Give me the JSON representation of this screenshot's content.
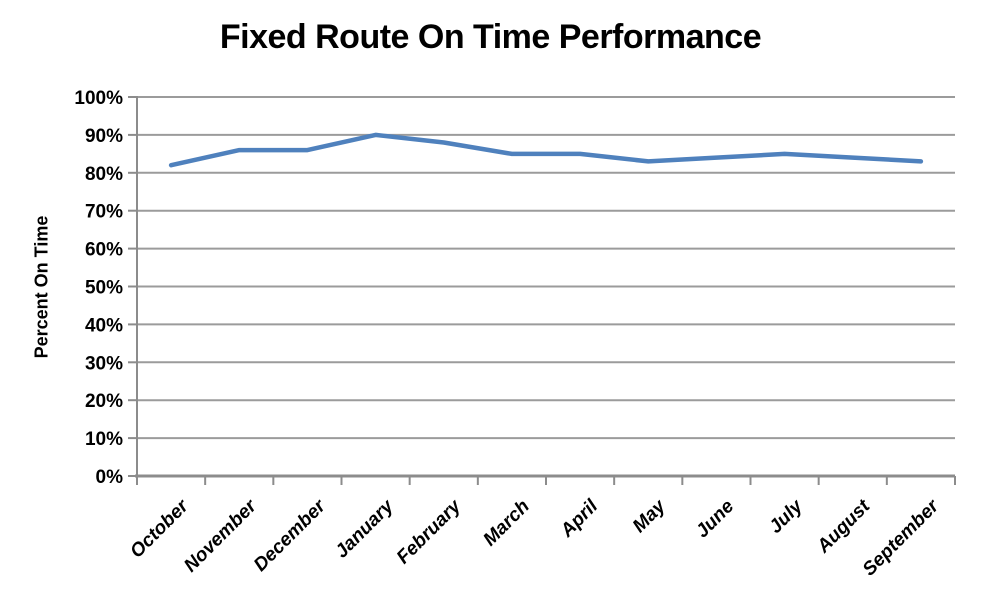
{
  "chart_data": {
    "type": "line",
    "title": "Fixed Route On Time Performance",
    "categories": [
      "October",
      "November",
      "December",
      "January",
      "February",
      "March",
      "April",
      "May",
      "June",
      "July",
      "August",
      "September"
    ],
    "series": [
      {
        "name": "Percent On Time",
        "values": [
          82,
          86,
          86,
          90,
          88,
          85,
          85,
          83,
          84,
          85,
          84,
          83
        ]
      }
    ],
    "xlabel": "",
    "ylabel": "Percent On Time",
    "ylim": [
      0,
      100
    ],
    "ytick_step": 10,
    "ytick_labels": [
      "0%",
      "10%",
      "20%",
      "30%",
      "40%",
      "50%",
      "60%",
      "70%",
      "80%",
      "90%",
      "100%"
    ],
    "grid": "horizontal-on",
    "legend": "none",
    "colors": {
      "line": "#4F81BD",
      "gridline": "#9B9B9B",
      "axis": "#8C8C8C",
      "text": "#000000",
      "background": "#FFFFFF"
    }
  }
}
